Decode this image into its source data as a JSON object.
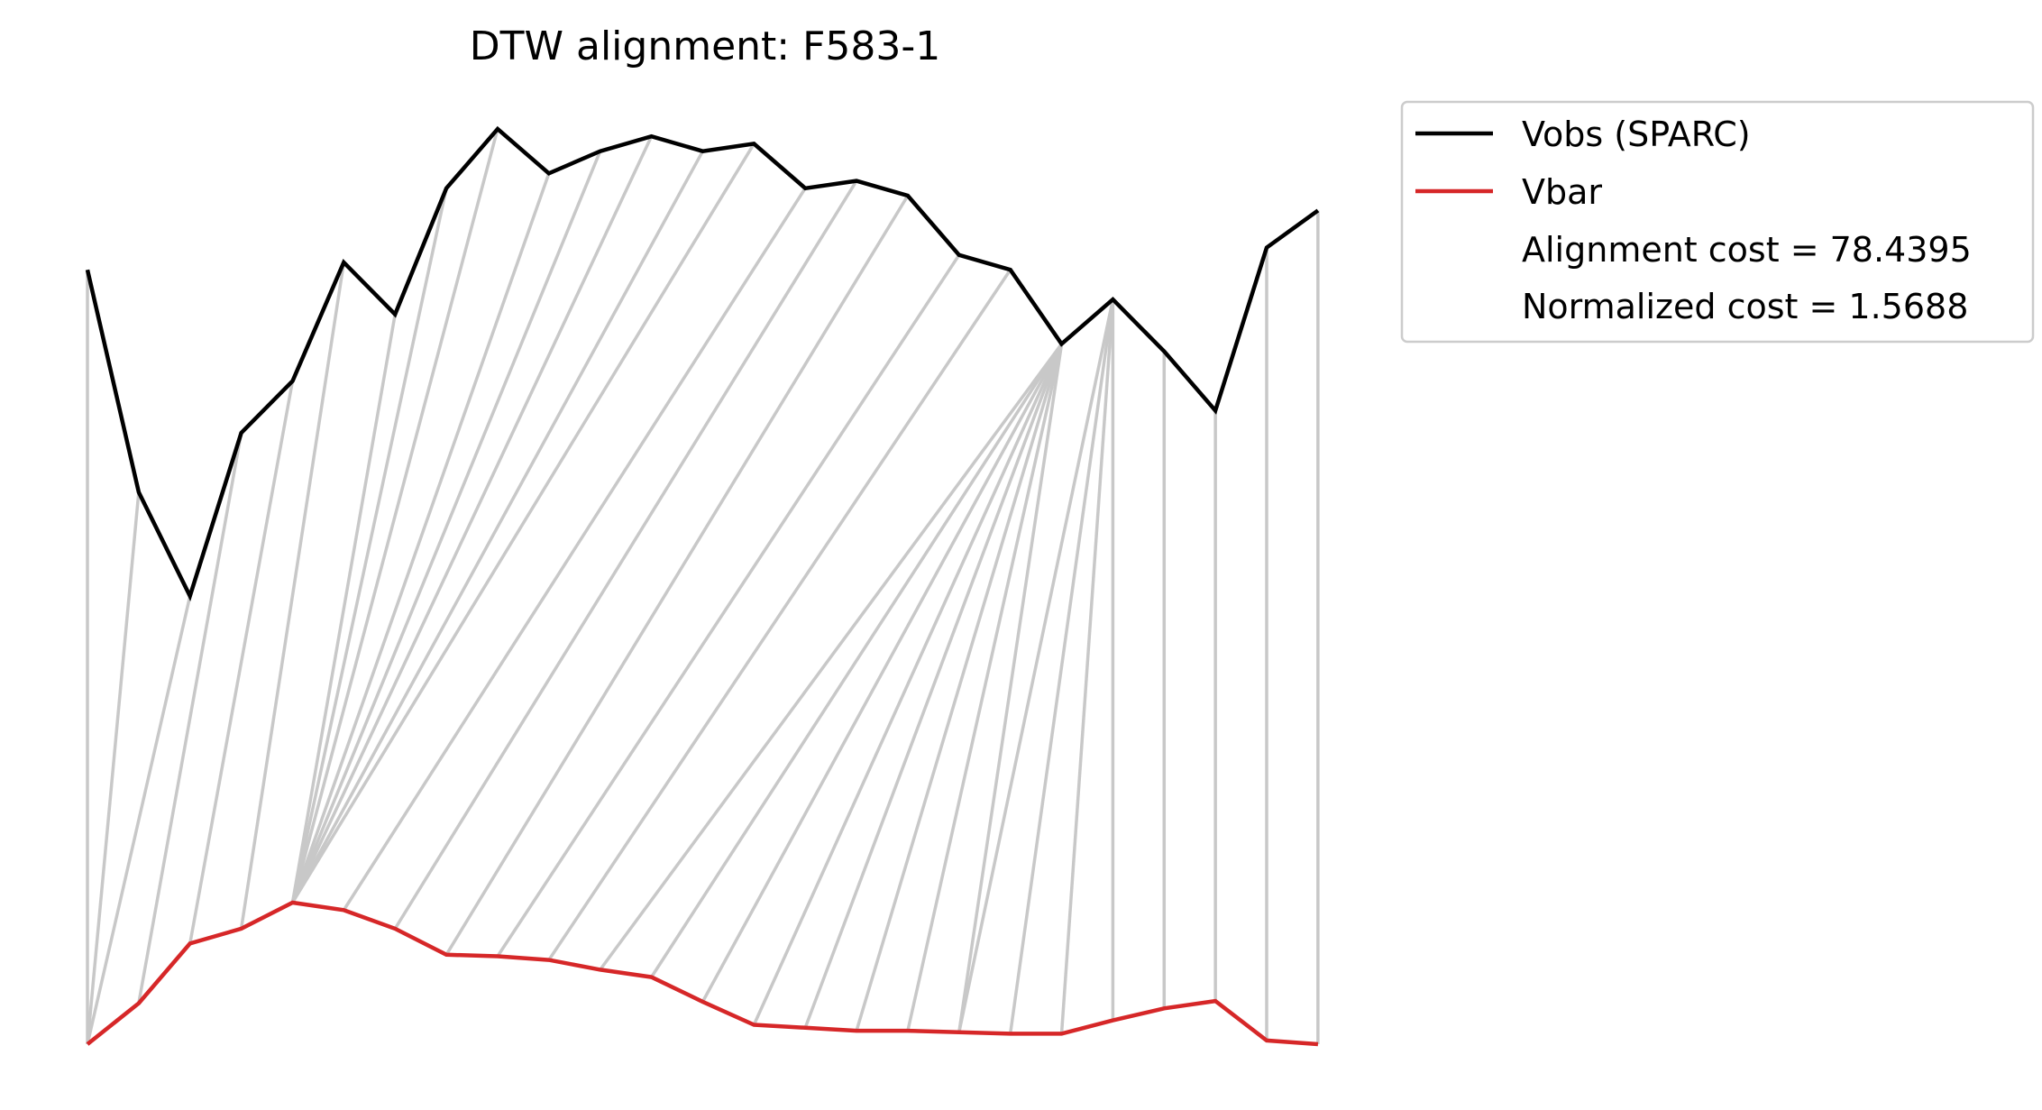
{
  "chart_data": {
    "type": "line",
    "title": "DTW alignment: F583-1",
    "x": [
      0,
      1,
      2,
      3,
      4,
      5,
      6,
      7,
      8,
      9,
      10,
      11,
      12,
      13,
      14,
      15,
      16,
      17,
      18,
      19,
      20,
      21,
      22,
      23,
      24
    ],
    "series": [
      {
        "name": "Vobs (SPARC)",
        "color": "#000000",
        "values": [
          1.0,
          0.7,
          0.56,
          0.78,
          0.85,
          1.01,
          0.94,
          1.11,
          1.19,
          1.13,
          1.16,
          1.18,
          1.16,
          1.17,
          1.11,
          1.12,
          1.1,
          1.02,
          1.0,
          0.9,
          0.96,
          0.89,
          0.81,
          1.03,
          1.08
        ]
      },
      {
        "name": "Vbar",
        "color": "#d62728",
        "values": [
          0.0,
          0.055,
          0.135,
          0.155,
          0.19,
          0.18,
          0.155,
          0.12,
          0.118,
          0.113,
          0.1,
          0.09,
          0.057,
          0.026,
          0.022,
          0.018,
          0.018,
          0.016,
          0.014,
          0.014,
          0.032,
          0.048,
          0.058,
          0.005,
          0.0
        ]
      }
    ],
    "alignment_pairs": [
      [
        0,
        0
      ],
      [
        1,
        0
      ],
      [
        2,
        0
      ],
      [
        3,
        1
      ],
      [
        4,
        2
      ],
      [
        5,
        3
      ],
      [
        6,
        4
      ],
      [
        7,
        4
      ],
      [
        8,
        4
      ],
      [
        9,
        4
      ],
      [
        10,
        4
      ],
      [
        11,
        4
      ],
      [
        12,
        4
      ],
      [
        13,
        4
      ],
      [
        14,
        5
      ],
      [
        15,
        6
      ],
      [
        16,
        7
      ],
      [
        17,
        8
      ],
      [
        18,
        9
      ],
      [
        19,
        10
      ],
      [
        19,
        11
      ],
      [
        19,
        12
      ],
      [
        19,
        13
      ],
      [
        19,
        14
      ],
      [
        19,
        15
      ],
      [
        19,
        16
      ],
      [
        19,
        17
      ],
      [
        20,
        17
      ],
      [
        20,
        18
      ],
      [
        20,
        19
      ],
      [
        20,
        20
      ],
      [
        21,
        21
      ],
      [
        22,
        22
      ],
      [
        23,
        23
      ],
      [
        24,
        24
      ]
    ],
    "alignment_color": "#c8c8c8",
    "alignment_cost": "78.4395",
    "normalized_cost": "1.5688",
    "legend": {
      "position": "upper-right-outside",
      "entries": [
        "Vobs (SPARC)",
        "Vbar",
        "Alignment cost = 78.4395",
        "Normalized cost = 1.5688"
      ]
    },
    "axes_visible": false,
    "grid": false
  }
}
